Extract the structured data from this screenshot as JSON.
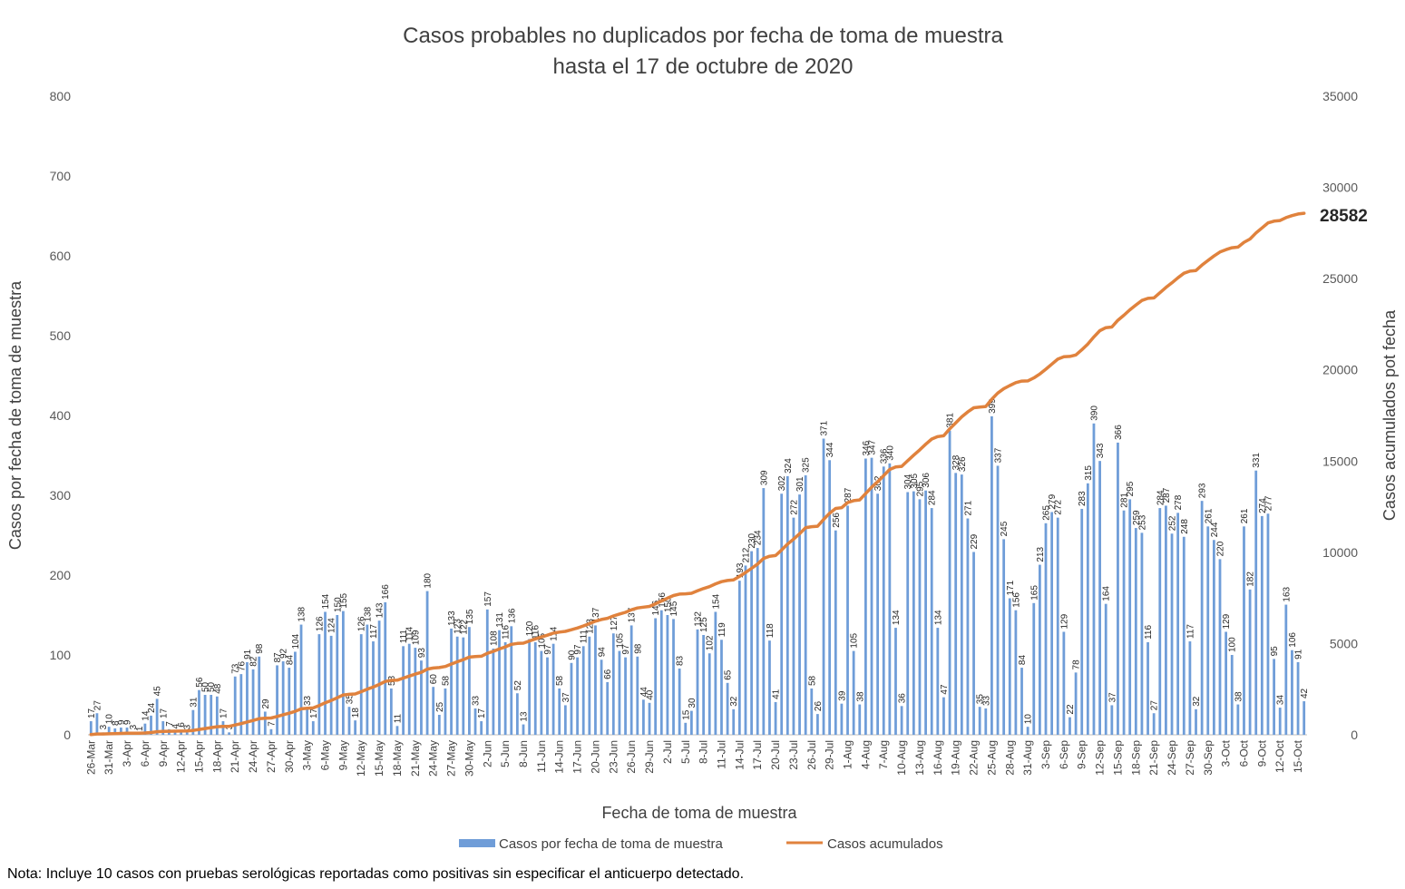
{
  "chart_data": {
    "type": "bar+line",
    "title_lines": [
      "Casos probables no duplicados por fecha de toma de muestra",
      "hasta el  17 de octubre de 2020"
    ],
    "xlabel": "Fecha de toma de muestra",
    "ylabel_left": "Casos por fecha de toma de muestra",
    "ylabel_right": "Casos acumulados pot fecha",
    "ylim_left": [
      0,
      800
    ],
    "ylim_right": [
      0,
      35000
    ],
    "yticks_left": [
      "0",
      "100",
      "200",
      "300",
      "400",
      "500",
      "600",
      "700",
      "800"
    ],
    "yticks_right": [
      "0",
      "5000",
      "10000",
      "15000",
      "20000",
      "25000",
      "30000",
      "35000"
    ],
    "start_date": "2020-03-26",
    "x_tick_labels": [
      "26-Mar",
      "31-Mar",
      "3-Apr",
      "6-Apr",
      "9-Apr",
      "12-Apr",
      "15-Apr",
      "18-Apr",
      "21-Apr",
      "24-Apr",
      "27-Apr",
      "30-Apr",
      "3-May",
      "6-May",
      "9-May",
      "12-May",
      "15-May",
      "18-May",
      "21-May",
      "24-May",
      "27-May",
      "30-May",
      "2-Jun",
      "5-Jun",
      "8-Jun",
      "11-Jun",
      "14-Jun",
      "17-Jun",
      "20-Jun",
      "23-Jun",
      "26-Jun",
      "29-Jun",
      "2-Jul",
      "5-Jul",
      "8-Jul",
      "11-Jul",
      "14-Jul",
      "17-Jul",
      "20-Jul",
      "23-Jul",
      "26-Jul",
      "29-Jul",
      "1-Aug",
      "4-Aug",
      "7-Aug",
      "10-Aug",
      "13-Aug",
      "16-Aug",
      "19-Aug",
      "22-Aug",
      "25-Aug",
      "28-Aug",
      "31-Aug",
      "3-Sep",
      "6-Sep",
      "9-Sep",
      "12-Sep",
      "15-Sep",
      "18-Sep",
      "21-Sep",
      "24-Sep",
      "27-Sep",
      "30-Sep",
      "3-Oct",
      "6-Oct",
      "9-Oct",
      "12-Oct",
      "15-Oct"
    ],
    "daily_cases": [
      17,
      27,
      3,
      10,
      8,
      9,
      9,
      3,
      1,
      14,
      24,
      45,
      17,
      7,
      4,
      6,
      3,
      31,
      56,
      50,
      50,
      48,
      17,
      3,
      73,
      76,
      91,
      82,
      98,
      29,
      7,
      87,
      92,
      84,
      104,
      138,
      33,
      17,
      126,
      154,
      124,
      150,
      155,
      35,
      18,
      126,
      138,
      117,
      143,
      166,
      58,
      11,
      111,
      114,
      109,
      93,
      180,
      60,
      25,
      58,
      133,
      123,
      122,
      135,
      33,
      17,
      157,
      108,
      131,
      116,
      136,
      52,
      13,
      120,
      116,
      105,
      97,
      114,
      58,
      37,
      90,
      97,
      111,
      123,
      137,
      94,
      66,
      127,
      105,
      97,
      137,
      98,
      44,
      40,
      146,
      156,
      150,
      145,
      83,
      15,
      30,
      132,
      125,
      102,
      154,
      119,
      65,
      32,
      193,
      212,
      230,
      234,
      309,
      118,
      41,
      302,
      324,
      272,
      301,
      325,
      58,
      26,
      371,
      344,
      256,
      39,
      287,
      105,
      38,
      346,
      347,
      302,
      336,
      340,
      134,
      36,
      304,
      305,
      295,
      306,
      284,
      134,
      47,
      381,
      328,
      326,
      271,
      229,
      35,
      33,
      399,
      337,
      245,
      171,
      156,
      84,
      10,
      165,
      213,
      265,
      279,
      272,
      129,
      22,
      78,
      283,
      315,
      390,
      343,
      164,
      37,
      366,
      281,
      295,
      259,
      253,
      116,
      27,
      284,
      287,
      252,
      278,
      248,
      117,
      32,
      293,
      261,
      244,
      220,
      129,
      100,
      38,
      261,
      182,
      331,
      274,
      277,
      95,
      34,
      163,
      106,
      91,
      42
    ],
    "cumulative_total_label": "28582",
    "cumulative_total": 28582,
    "series": [
      {
        "name": "Casos por fecha de toma de muestra",
        "color": "#6f9dd8"
      },
      {
        "name": "Casos acumulados",
        "color": "#e0823d"
      }
    ],
    "grid": false,
    "legend_position": "bottom-center"
  },
  "note": "Nota: Incluye 10 casos con pruebas serológicas reportadas como positivas sin especificar el anticuerpo detectado."
}
